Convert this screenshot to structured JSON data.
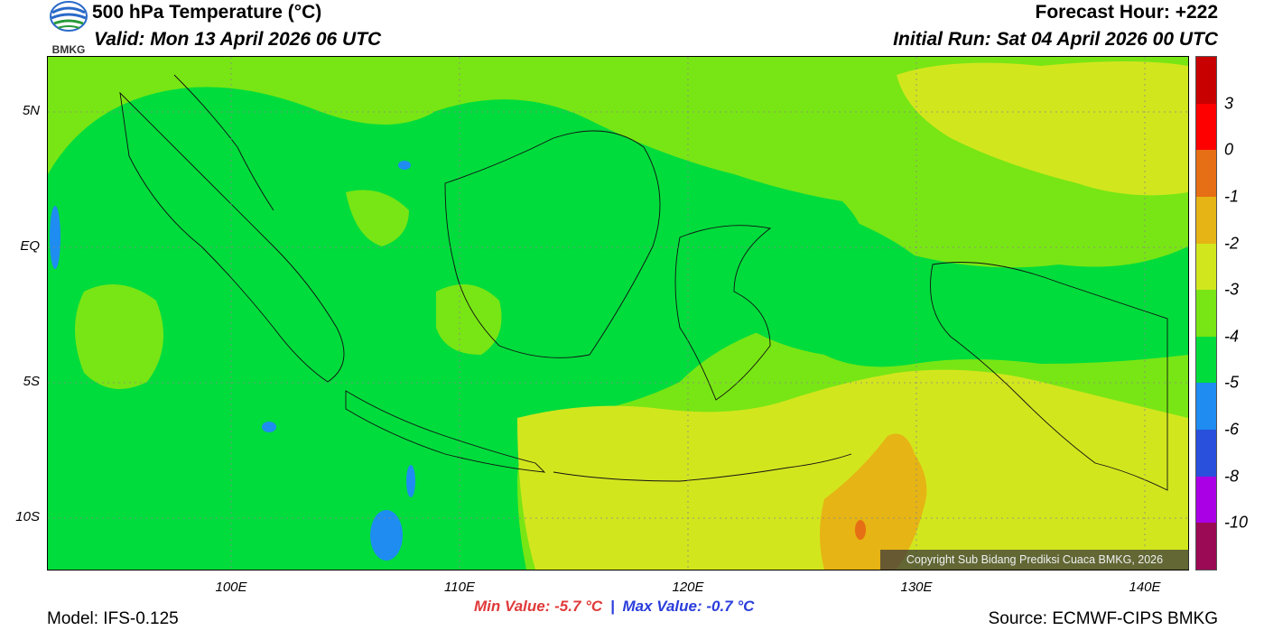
{
  "header": {
    "title": "500 hPa Temperature (°C)",
    "valid": "Valid: Mon 13 April 2026 06 UTC",
    "forecast_hour": "Forecast Hour: +222",
    "initial_run": "Initial Run: Sat 04 April 2026 00 UTC",
    "logo_text": "BMKG"
  },
  "map": {
    "lat_labels": [
      "5N",
      "EQ",
      "5S",
      "10S"
    ],
    "lon_labels": [
      "100E",
      "110E",
      "120E",
      "130E",
      "140E"
    ],
    "colors": {
      "c_m5_m4": "#00dc3c",
      "c_m4_m3": "#78e614",
      "c_m3_m2": "#d2e61e",
      "c_m2_m1": "#e6b414",
      "c_m6_m5": "#1e8cf0",
      "c_m1_0": "#e66e14"
    },
    "copyright": "Copyright Sub Bidang Prediksi Cuaca BMKG, 2026"
  },
  "colorbar": {
    "labels": [
      "3",
      "0",
      "-1",
      "-2",
      "-3",
      "-4",
      "-5",
      "-6",
      "-8",
      "-10"
    ],
    "colors": [
      "#c80000",
      "#ff0000",
      "#e66e14",
      "#e6b414",
      "#d2e61e",
      "#78e614",
      "#00dc3c",
      "#1e8cf0",
      "#2850dc",
      "#aa00e6",
      "#9b0a55"
    ]
  },
  "footer": {
    "min_value": "Min Value: -5.7 °C",
    "separator": "|",
    "max_value": "Max Value: -0.7 °C",
    "model": "Model: IFS-0.125",
    "source": "Source: ECMWF-CIPS BMKG"
  }
}
